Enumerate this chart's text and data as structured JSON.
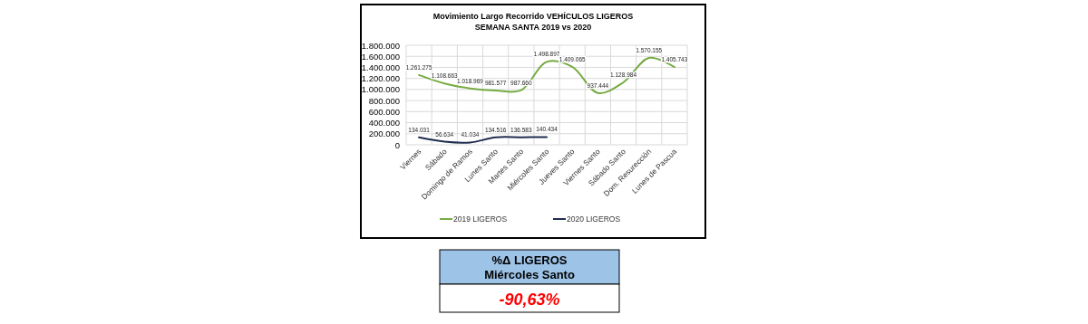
{
  "chart_data": {
    "type": "line",
    "title": "Movimiento Largo Recorrido  VEHÍCULOS LIGEROS",
    "subtitle": "SEMANA SANTA 2019 vs 2020",
    "categories": [
      "Viernes",
      "Sábado",
      "Domingo de Ramos",
      "Lunes Santo",
      "Martes Santo",
      "Miércoles Santo",
      "Jueves Santo",
      "Viernes Santo",
      "Sábado Santo",
      "Dom. Resurección",
      "Lunes de Pascua"
    ],
    "series": [
      {
        "name": "2019 LIGEROS",
        "color": "#77ab43",
        "values": [
          1261275,
          1108663,
          1018969,
          981577,
          987660,
          1498897,
          1409065,
          937444,
          1128984,
          1570155,
          1405743
        ],
        "value_labels": [
          "1.261.275",
          "1.108.663",
          "1.018.969",
          "981.577",
          "987.660",
          "1.498.897",
          "1.409.065",
          "937.444",
          "1.128.984",
          "1.570.155",
          "1.405.743"
        ]
      },
      {
        "name": "2020 LIGEROS",
        "color": "#1f2d4f",
        "values": [
          134031,
          56634,
          41034,
          134516,
          136583,
          140434,
          null,
          null,
          null,
          null,
          null
        ],
        "value_labels": [
          "134.031",
          "56.634",
          "41.034",
          "134.516",
          "136.583",
          "140.434",
          null,
          null,
          null,
          null,
          null
        ]
      }
    ],
    "ylim": [
      0,
      1800000
    ],
    "yticks": [
      {
        "value": 0,
        "label": "0"
      },
      {
        "value": 200000,
        "label": "200.000"
      },
      {
        "value": 400000,
        "label": "400.000"
      },
      {
        "value": 600000,
        "label": "600.000"
      },
      {
        "value": 800000,
        "label": "800.000"
      },
      {
        "value": 1000000,
        "label": "1.000.000"
      },
      {
        "value": 1200000,
        "label": "1.200.000"
      },
      {
        "value": 1400000,
        "label": "1.400.000"
      },
      {
        "value": 1600000,
        "label": "1.600.000"
      },
      {
        "value": 1800000,
        "label": "1.800.000"
      }
    ],
    "grid": true,
    "legend": "bottom",
    "marker": "none",
    "line_style": "solid",
    "annotations": [
      "%Δ LIGEROS",
      "Miércoles Santo",
      "-90,63%"
    ]
  }
}
